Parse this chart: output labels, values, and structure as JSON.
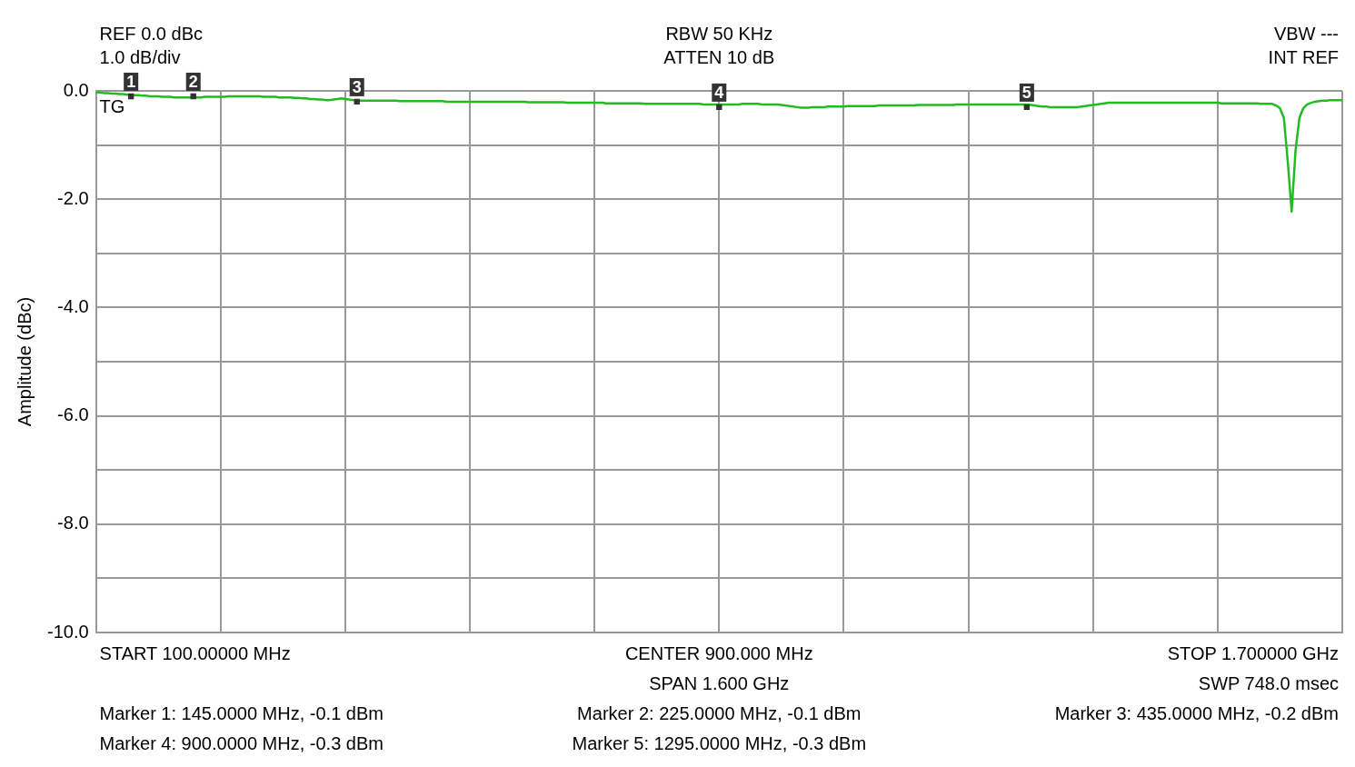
{
  "chart_data": {
    "type": "line",
    "ylabel": "Amplitude (dBc)",
    "categories": [
      null,
      null,
      null,
      null,
      null,
      null,
      null,
      null,
      null,
      null,
      null,
      null,
      null,
      null,
      null,
      null,
      null,
      null,
      null,
      null,
      null,
      null,
      null,
      null,
      null,
      null,
      null,
      null,
      null,
      null,
      null,
      null,
      null,
      null,
      null,
      null,
      null,
      null,
      null,
      null,
      null,
      null,
      null,
      null,
      null,
      null,
      null,
      null,
      null,
      null,
      null,
      null,
      null,
      null,
      null,
      null,
      null,
      null,
      null,
      null,
      null,
      null,
      null,
      null,
      null,
      null,
      null,
      null,
      null,
      null,
      null,
      null,
      null,
      null,
      null,
      null,
      null,
      null,
      null,
      null,
      null,
      null,
      null,
      null,
      null,
      null,
      null,
      null,
      null,
      null,
      null,
      null,
      null,
      null,
      null,
      null,
      null,
      null,
      null,
      null,
      null,
      null,
      null,
      null,
      null,
      null,
      null,
      null,
      null,
      null,
      null,
      null,
      null,
      null,
      null,
      null,
      null,
      null,
      null,
      null,
      null,
      null,
      null,
      null,
      null,
      null,
      null,
      null,
      null,
      null,
      null,
      null,
      null,
      null,
      null,
      null,
      null,
      null,
      null,
      null,
      null,
      null,
      null,
      null,
      null,
      null,
      null,
      null,
      null,
      null,
      null,
      null,
      null,
      null,
      null,
      null,
      null,
      null,
      null,
      null,
      null,
      null,
      null,
      null,
      null,
      null,
      null,
      null,
      null,
      null,
      null,
      null,
      null,
      null,
      null,
      null,
      null,
      null,
      null,
      null,
      null,
      null,
      null,
      null,
      null,
      null,
      null,
      null,
      null,
      null,
      null,
      null,
      null,
      null,
      null,
      null,
      null,
      null,
      null,
      null,
      null,
      null,
      null,
      null,
      null,
      null,
      null,
      null,
      null,
      null,
      null,
      null,
      null,
      null,
      null,
      null,
      null,
      null,
      null,
      null,
      null,
      null,
      null,
      null,
      null,
      null,
      null,
      null,
      null,
      null,
      null,
      null,
      null,
      null,
      null,
      null,
      null,
      null,
      null,
      null,
      null,
      null,
      null,
      null,
      null,
      null,
      null,
      null,
      null,
      null,
      null,
      null,
      null,
      null,
      null,
      null,
      null,
      null,
      null,
      null,
      null,
      null,
      null,
      null,
      null,
      null,
      null,
      null,
      null,
      null,
      null,
      null,
      null,
      null,
      null,
      null,
      null,
      null,
      null,
      null,
      null,
      null,
      null,
      null,
      null,
      null,
      null,
      null,
      null,
      null,
      null,
      null,
      null,
      null,
      null,
      null,
      null,
      null,
      null,
      null,
      null,
      null,
      null,
      null,
      null,
      null,
      null,
      null,
      null,
      null,
      null,
      null,
      null,
      null,
      null,
      null,
      null,
      null,
      null,
      null,
      null
    ],
    "ylim": [
      -10,
      0
    ],
    "yticks": [
      {
        "value": 0,
        "label": "0.0"
      },
      {
        "value": -1,
        "label": null
      },
      {
        "value": -2,
        "label": "-2.0"
      },
      {
        "value": -3,
        "label": null
      },
      {
        "value": -4,
        "label": "-4.0"
      },
      {
        "value": -5,
        "label": null
      },
      {
        "value": -6,
        "label": "-6.0"
      },
      {
        "value": -7,
        "label": null
      },
      {
        "value": -8,
        "label": "-8.0"
      },
      {
        "value": -9,
        "label": null
      },
      {
        "value": -10,
        "label": "-10.0"
      }
    ],
    "grid": true,
    "legend": false,
    "line_style": "solid",
    "tick_labels": "y",
    "series": [
      {
        "color": "#22bb22",
        "values": [
          -0.03,
          -0.03,
          -0.04,
          -0.04,
          -0.05,
          -0.05,
          -0.06,
          -0.06,
          -0.07,
          -0.07,
          -0.08,
          -0.08,
          -0.09,
          -0.09,
          -0.1,
          -0.1,
          -0.1,
          -0.11,
          -0.11,
          -0.11,
          -0.12,
          -0.12,
          -0.12,
          -0.12,
          -0.12,
          -0.12,
          -0.12,
          -0.12,
          -0.11,
          -0.11,
          -0.11,
          -0.11,
          -0.11,
          -0.11,
          -0.1,
          -0.1,
          -0.1,
          -0.1,
          -0.1,
          -0.1,
          -0.1,
          -0.1,
          -0.1,
          -0.11,
          -0.11,
          -0.11,
          -0.11,
          -0.12,
          -0.12,
          -0.12,
          -0.12,
          -0.13,
          -0.13,
          -0.14,
          -0.14,
          -0.15,
          -0.15,
          -0.16,
          -0.16,
          -0.17,
          -0.17,
          -0.16,
          -0.15,
          -0.14,
          -0.15,
          -0.16,
          -0.17,
          -0.18,
          -0.18,
          -0.18,
          -0.18,
          -0.18,
          -0.18,
          -0.18,
          -0.18,
          -0.18,
          -0.18,
          -0.18,
          -0.19,
          -0.19,
          -0.19,
          -0.19,
          -0.19,
          -0.19,
          -0.19,
          -0.19,
          -0.19,
          -0.19,
          -0.19,
          -0.19,
          -0.2,
          -0.2,
          -0.2,
          -0.2,
          -0.2,
          -0.2,
          -0.2,
          -0.2,
          -0.2,
          -0.2,
          -0.2,
          -0.2,
          -0.2,
          -0.2,
          -0.2,
          -0.2,
          -0.2,
          -0.2,
          -0.2,
          -0.2,
          -0.2,
          -0.21,
          -0.21,
          -0.21,
          -0.21,
          -0.21,
          -0.21,
          -0.21,
          -0.21,
          -0.21,
          -0.21,
          -0.22,
          -0.22,
          -0.22,
          -0.22,
          -0.22,
          -0.22,
          -0.22,
          -0.22,
          -0.22,
          -0.22,
          -0.23,
          -0.23,
          -0.23,
          -0.23,
          -0.23,
          -0.23,
          -0.23,
          -0.23,
          -0.23,
          -0.23,
          -0.24,
          -0.24,
          -0.24,
          -0.24,
          -0.24,
          -0.24,
          -0.24,
          -0.24,
          -0.24,
          -0.24,
          -0.24,
          -0.24,
          -0.24,
          -0.24,
          -0.24,
          -0.25,
          -0.25,
          -0.25,
          -0.25,
          -0.25,
          -0.25,
          -0.25,
          -0.25,
          -0.25,
          -0.25,
          -0.24,
          -0.24,
          -0.24,
          -0.24,
          -0.24,
          -0.25,
          -0.25,
          -0.25,
          -0.25,
          -0.25,
          -0.26,
          -0.27,
          -0.28,
          -0.29,
          -0.3,
          -0.31,
          -0.31,
          -0.31,
          -0.3,
          -0.3,
          -0.3,
          -0.3,
          -0.29,
          -0.29,
          -0.29,
          -0.29,
          -0.29,
          -0.28,
          -0.28,
          -0.28,
          -0.28,
          -0.28,
          -0.28,
          -0.28,
          -0.28,
          -0.27,
          -0.27,
          -0.27,
          -0.27,
          -0.27,
          -0.27,
          -0.27,
          -0.27,
          -0.27,
          -0.27,
          -0.26,
          -0.26,
          -0.26,
          -0.26,
          -0.26,
          -0.26,
          -0.26,
          -0.26,
          -0.26,
          -0.26,
          -0.25,
          -0.25,
          -0.25,
          -0.25,
          -0.25,
          -0.25,
          -0.25,
          -0.25,
          -0.25,
          -0.25,
          -0.25,
          -0.25,
          -0.25,
          -0.25,
          -0.25,
          -0.25,
          -0.25,
          -0.25,
          -0.25,
          -0.26,
          -0.27,
          -0.28,
          -0.29,
          -0.29,
          -0.3,
          -0.3,
          -0.3,
          -0.3,
          -0.3,
          -0.3,
          -0.3,
          -0.3,
          -0.29,
          -0.28,
          -0.27,
          -0.26,
          -0.25,
          -0.24,
          -0.23,
          -0.22,
          -0.22,
          -0.22,
          -0.22,
          -0.22,
          -0.22,
          -0.22,
          -0.22,
          -0.22,
          -0.22,
          -0.22,
          -0.22,
          -0.22,
          -0.22,
          -0.22,
          -0.22,
          -0.22,
          -0.22,
          -0.22,
          -0.22,
          -0.22,
          -0.22,
          -0.22,
          -0.22,
          -0.22,
          -0.22,
          -0.22,
          -0.22,
          -0.22,
          -0.23,
          -0.23,
          -0.23,
          -0.23,
          -0.23,
          -0.23,
          -0.23,
          -0.23,
          -0.23,
          -0.23,
          -0.24,
          -0.24,
          -0.24,
          -0.24,
          -0.27,
          -0.32,
          -0.5,
          -1.3,
          -2.23,
          -1.1,
          -0.5,
          -0.32,
          -0.25,
          -0.22,
          -0.2,
          -0.19,
          -0.18,
          -0.18,
          -0.17,
          -0.17,
          -0.17,
          -0.17
        ]
      },
      {
        "type": "scatter",
        "marker": "square",
        "color": "#333333",
        "values": [
          null,
          null,
          null,
          null,
          null,
          null,
          null,
          null,
          null,
          -0.1,
          null,
          null,
          null,
          null,
          null,
          null,
          null,
          null,
          null,
          null,
          null,
          null,
          null,
          null,
          null,
          -0.1,
          null,
          null,
          null,
          null,
          null,
          null,
          null,
          null,
          null,
          null,
          null,
          null,
          null,
          null,
          null,
          null,
          null,
          null,
          null,
          null,
          null,
          null,
          null,
          null,
          null,
          null,
          null,
          null,
          null,
          null,
          null,
          null,
          null,
          null,
          null,
          null,
          null,
          null,
          null,
          null,
          null,
          -0.2,
          null,
          null,
          null,
          null,
          null,
          null,
          null,
          null,
          null,
          null,
          null,
          null,
          null,
          null,
          null,
          null,
          null,
          null,
          null,
          null,
          null,
          null,
          null,
          null,
          null,
          null,
          null,
          null,
          null,
          null,
          null,
          null,
          null,
          null,
          null,
          null,
          null,
          null,
          null,
          null,
          null,
          null,
          null,
          null,
          null,
          null,
          null,
          null,
          null,
          null,
          null,
          null,
          null,
          null,
          null,
          null,
          null,
          null,
          null,
          null,
          null,
          null,
          null,
          null,
          null,
          null,
          null,
          null,
          null,
          null,
          null,
          null,
          null,
          null,
          null,
          null,
          null,
          null,
          null,
          null,
          null,
          null,
          null,
          null,
          null,
          null,
          null,
          null,
          null,
          null,
          null,
          null,
          -0.3,
          null,
          null,
          null,
          null,
          null,
          null,
          null,
          null,
          null,
          null,
          null,
          null,
          null,
          null,
          null,
          null,
          null,
          null,
          null,
          null,
          null,
          null,
          null,
          null,
          null,
          null,
          null,
          null,
          null,
          null,
          null,
          null,
          null,
          null,
          null,
          null,
          null,
          null,
          null,
          null,
          null,
          null,
          null,
          null,
          null,
          null,
          null,
          null,
          null,
          null,
          null,
          null,
          null,
          null,
          null,
          null,
          null,
          null,
          null,
          null,
          null,
          null,
          null,
          null,
          null,
          null,
          null,
          null,
          null,
          null,
          null,
          null,
          null,
          null,
          null,
          null,
          null,
          null,
          -0.3,
          null,
          null,
          null,
          null,
          null,
          null,
          null,
          null,
          null,
          null,
          null,
          null,
          null,
          null,
          null,
          null,
          null,
          null,
          null,
          null,
          null,
          null,
          null,
          null,
          null,
          null,
          null,
          null,
          null,
          null,
          null,
          null,
          null,
          null,
          null,
          null,
          null,
          null,
          null,
          null,
          null,
          null,
          null,
          null,
          null,
          null,
          null,
          null,
          null,
          null,
          null,
          null,
          null,
          null,
          null,
          null,
          null,
          null,
          null,
          null,
          null,
          null,
          null,
          null,
          null,
          null,
          null,
          null,
          null,
          null,
          null,
          null,
          null,
          null,
          null,
          null,
          null,
          null,
          null,
          null,
          null
        ]
      }
    ],
    "annotations": [
      "REF 0.0 dBc",
      "1.0 dB/div",
      "TG",
      "RBW 50 KHz",
      "ATTEN 10 dB",
      "VBW ---",
      "INT REF",
      "START 100.00000 MHz",
      "CENTER 900.000 MHz",
      "STOP 1.700000 GHz",
      "SPAN 1.600 GHz",
      "SWP 748.0 msec",
      "Marker 1: 145.0000 MHz, -0.1 dBm",
      "Marker 2: 225.0000 MHz, -0.1 dBm",
      "Marker 3: 435.0000 MHz, -0.2 dBm",
      "Marker 4: 900.0000 MHz, -0.3 dBm",
      "Marker 5: 1295.0000 MHz, -0.3 dBm",
      "1",
      "2",
      "3",
      "4",
      "5"
    ]
  }
}
